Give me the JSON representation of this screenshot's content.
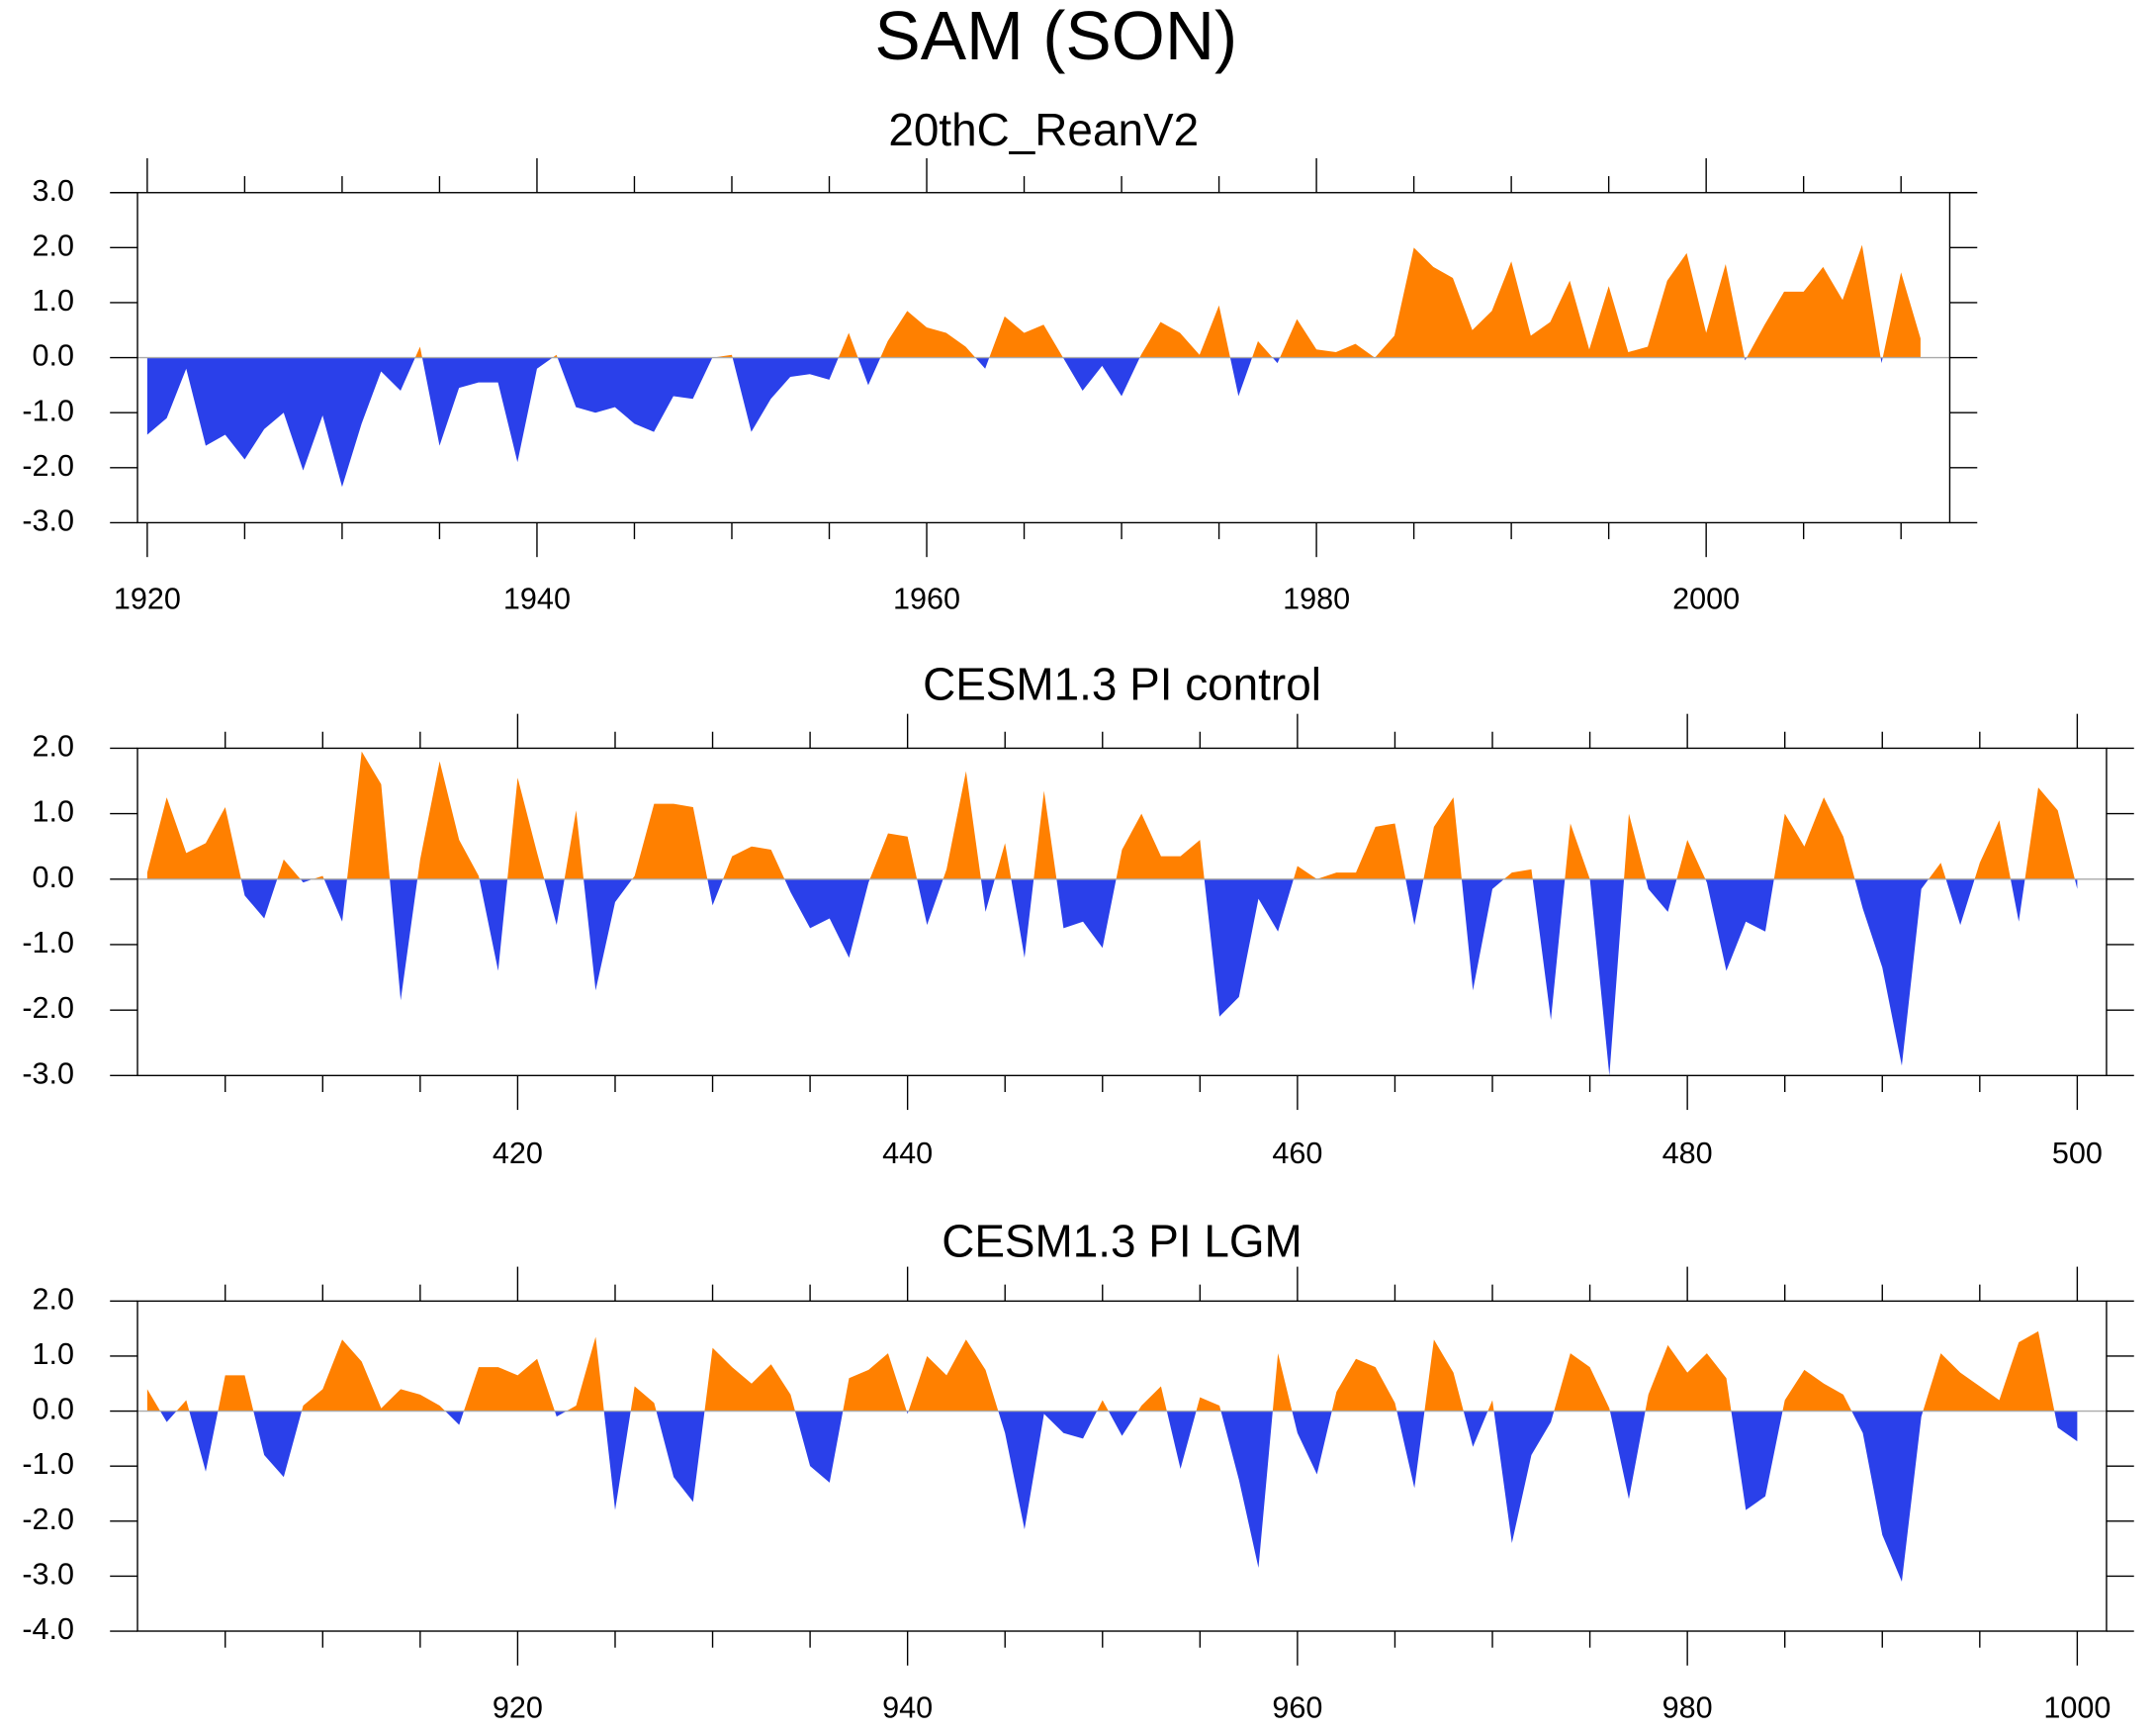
{
  "title": "SAM (SON)",
  "chart_data": [
    {
      "type": "area",
      "title": "20thC_ReanV2",
      "positive_color": "#ff8000",
      "negative_color": "#2a40ea",
      "xlim": [
        1919.5,
        2012.5
      ],
      "xticks": [
        1920,
        1940,
        1960,
        1980,
        2000
      ],
      "xminorticks": [
        1925,
        1930,
        1935,
        1945,
        1950,
        1955,
        1965,
        1970,
        1975,
        1985,
        1990,
        1995,
        2005,
        2010
      ],
      "ylim": [
        -3,
        3
      ],
      "yticks": [
        {
          "value": -3,
          "label": "-3.0"
        },
        {
          "value": -2,
          "label": "-2.0"
        },
        {
          "value": -1,
          "label": "-1.0"
        },
        {
          "value": 0,
          "label": "0.0"
        },
        {
          "value": 1,
          "label": "1.0"
        },
        {
          "value": 2,
          "label": "2.0"
        },
        {
          "value": 3,
          "label": "3.0"
        }
      ],
      "x": [
        1920,
        1921,
        1922,
        1923,
        1924,
        1925,
        1926,
        1927,
        1928,
        1929,
        1930,
        1931,
        1932,
        1933,
        1934,
        1935,
        1936,
        1937,
        1938,
        1939,
        1940,
        1941,
        1942,
        1943,
        1944,
        1945,
        1946,
        1947,
        1948,
        1949,
        1950,
        1951,
        1952,
        1953,
        1954,
        1955,
        1956,
        1957,
        1958,
        1959,
        1960,
        1961,
        1962,
        1963,
        1964,
        1965,
        1966,
        1967,
        1968,
        1969,
        1970,
        1971,
        1972,
        1973,
        1974,
        1975,
        1976,
        1977,
        1978,
        1979,
        1980,
        1981,
        1982,
        1983,
        1984,
        1985,
        1986,
        1987,
        1988,
        1989,
        1990,
        1991,
        1992,
        1993,
        1994,
        1995,
        1996,
        1997,
        1998,
        1999,
        2000,
        2001,
        2002,
        2003,
        2004,
        2005,
        2006,
        2007,
        2008,
        2009,
        2010,
        2011
      ],
      "values": [
        -1.4,
        -1.1,
        -0.2,
        -1.6,
        -1.4,
        -1.85,
        -1.3,
        -1.0,
        -2.05,
        -1.05,
        -2.35,
        -1.2,
        -0.25,
        -0.6,
        0.2,
        -1.6,
        -0.55,
        -0.45,
        -0.45,
        -1.9,
        -0.2,
        0.05,
        -0.9,
        -1.0,
        -0.9,
        -1.2,
        -1.35,
        -0.7,
        -0.75,
        0.0,
        0.05,
        -1.35,
        -0.75,
        -0.35,
        -0.3,
        -0.4,
        0.45,
        -0.5,
        0.3,
        0.85,
        0.55,
        0.45,
        0.2,
        -0.2,
        0.75,
        0.45,
        0.6,
        0.0,
        -0.6,
        -0.15,
        -0.7,
        0.05,
        0.65,
        0.45,
        0.05,
        0.95,
        -0.7,
        0.3,
        -0.1,
        0.7,
        0.15,
        0.1,
        0.25,
        0.0,
        0.4,
        2.0,
        1.65,
        1.45,
        0.5,
        0.85,
        1.75,
        0.4,
        0.65,
        1.4,
        0.15,
        1.3,
        0.1,
        0.2,
        1.4,
        1.9,
        0.45,
        1.7,
        -0.05,
        0.6,
        1.2,
        1.2,
        1.65,
        1.05,
        2.05,
        -0.1,
        1.55,
        0.35
      ]
    },
    {
      "type": "area",
      "title": "CESM1.3 PI control",
      "positive_color": "#ff8000",
      "negative_color": "#2a40ea",
      "xlim": [
        400.5,
        501.5
      ],
      "xticks": [
        420,
        440,
        460,
        480,
        500
      ],
      "xminorticks": [
        405,
        410,
        415,
        425,
        430,
        435,
        445,
        450,
        455,
        465,
        470,
        475,
        485,
        490,
        495
      ],
      "ylim": [
        -3,
        2
      ],
      "yticks": [
        {
          "value": -3,
          "label": "-3.0"
        },
        {
          "value": -2,
          "label": "-2.0"
        },
        {
          "value": -1,
          "label": "-1.0"
        },
        {
          "value": 0,
          "label": "0.0"
        },
        {
          "value": 1,
          "label": "1.0"
        },
        {
          "value": 2,
          "label": "2.0"
        }
      ],
      "x": [
        401,
        402,
        403,
        404,
        405,
        406,
        407,
        408,
        409,
        410,
        411,
        412,
        413,
        414,
        415,
        416,
        417,
        418,
        419,
        420,
        421,
        422,
        423,
        424,
        425,
        426,
        427,
        428,
        429,
        430,
        431,
        432,
        433,
        434,
        435,
        436,
        437,
        438,
        439,
        440,
        441,
        442,
        443,
        444,
        445,
        446,
        447,
        448,
        449,
        450,
        451,
        452,
        453,
        454,
        455,
        456,
        457,
        458,
        459,
        460,
        461,
        462,
        463,
        464,
        465,
        466,
        467,
        468,
        469,
        470,
        471,
        472,
        473,
        474,
        475,
        476,
        477,
        478,
        479,
        480,
        481,
        482,
        483,
        484,
        485,
        486,
        487,
        488,
        489,
        490,
        491,
        492,
        493,
        494,
        495,
        496,
        497,
        498,
        499,
        500
      ],
      "values": [
        0.1,
        1.25,
        0.4,
        0.55,
        1.1,
        -0.25,
        -0.6,
        0.3,
        -0.05,
        0.05,
        -0.65,
        1.95,
        1.45,
        -1.85,
        0.3,
        1.8,
        0.6,
        0.05,
        -1.4,
        1.55,
        0.4,
        -0.7,
        1.05,
        -1.7,
        -0.35,
        0.05,
        1.15,
        1.15,
        1.1,
        -0.4,
        0.35,
        0.5,
        0.45,
        -0.2,
        -0.75,
        -0.6,
        -1.2,
        -0.05,
        0.7,
        0.65,
        -0.7,
        0.15,
        1.65,
        -0.5,
        0.55,
        -1.2,
        1.35,
        -0.75,
        -0.65,
        -1.05,
        0.45,
        1.0,
        0.35,
        0.35,
        0.6,
        -2.1,
        -1.8,
        -0.3,
        -0.8,
        0.2,
        0.0,
        0.1,
        0.1,
        0.8,
        0.85,
        -0.7,
        0.8,
        1.25,
        -1.7,
        -0.15,
        0.1,
        0.15,
        -2.15,
        0.85,
        0.0,
        -3.0,
        1.0,
        -0.15,
        -0.5,
        0.6,
        -0.05,
        -1.4,
        -0.65,
        -0.8,
        1.0,
        0.5,
        1.25,
        0.65,
        -0.45,
        -1.35,
        -2.85,
        -0.15,
        0.25,
        -0.7,
        0.25,
        0.9,
        -0.65,
        1.4,
        1.05,
        -0.15
      ]
    },
    {
      "type": "area",
      "title": "CESM1.3 PI LGM",
      "positive_color": "#ff8000",
      "negative_color": "#2a40ea",
      "xlim": [
        900.5,
        1001.5
      ],
      "xticks": [
        920,
        940,
        960,
        980,
        1000
      ],
      "xminorticks": [
        905,
        910,
        915,
        925,
        930,
        935,
        945,
        950,
        955,
        965,
        970,
        975,
        985,
        990,
        995
      ],
      "ylim": [
        -4,
        2
      ],
      "yticks": [
        {
          "value": -4,
          "label": "-4.0"
        },
        {
          "value": -3,
          "label": "-3.0"
        },
        {
          "value": -2,
          "label": "-2.0"
        },
        {
          "value": -1,
          "label": "-1.0"
        },
        {
          "value": 0,
          "label": "0.0"
        },
        {
          "value": 1,
          "label": "1.0"
        },
        {
          "value": 2,
          "label": "2.0"
        }
      ],
      "x": [
        901,
        902,
        903,
        904,
        905,
        906,
        907,
        908,
        909,
        910,
        911,
        912,
        913,
        914,
        915,
        916,
        917,
        918,
        919,
        920,
        921,
        922,
        923,
        924,
        925,
        926,
        927,
        928,
        929,
        930,
        931,
        932,
        933,
        934,
        935,
        936,
        937,
        938,
        939,
        940,
        941,
        942,
        943,
        944,
        945,
        946,
        947,
        948,
        949,
        950,
        951,
        952,
        953,
        954,
        955,
        956,
        957,
        958,
        959,
        960,
        961,
        962,
        963,
        964,
        965,
        966,
        967,
        968,
        969,
        970,
        971,
        972,
        973,
        974,
        975,
        976,
        977,
        978,
        979,
        980,
        981,
        982,
        983,
        984,
        985,
        986,
        987,
        988,
        989,
        990,
        991,
        992,
        993,
        994,
        995,
        996,
        997,
        998,
        999,
        1000
      ],
      "values": [
        0.4,
        -0.2,
        0.2,
        -1.1,
        0.65,
        0.65,
        -0.8,
        -1.2,
        0.1,
        0.4,
        1.3,
        0.9,
        0.05,
        0.4,
        0.3,
        0.1,
        -0.25,
        0.8,
        0.8,
        0.65,
        0.95,
        -0.1,
        0.1,
        1.35,
        -1.8,
        0.45,
        0.15,
        -1.2,
        -1.65,
        1.15,
        0.8,
        0.5,
        0.85,
        0.3,
        -1.0,
        -1.3,
        0.6,
        0.75,
        1.05,
        -0.05,
        1.0,
        0.65,
        1.3,
        0.75,
        -0.4,
        -2.15,
        -0.05,
        -0.4,
        -0.5,
        0.2,
        -0.45,
        0.1,
        0.45,
        -1.05,
        0.25,
        0.1,
        -1.25,
        -2.85,
        1.05,
        -0.4,
        -1.15,
        0.35,
        0.95,
        0.8,
        0.15,
        -1.4,
        1.3,
        0.7,
        -0.65,
        0.2,
        -2.4,
        -0.8,
        -0.2,
        1.05,
        0.8,
        0.05,
        -1.6,
        0.3,
        1.2,
        0.7,
        1.05,
        0.6,
        -1.8,
        -1.55,
        0.2,
        0.75,
        0.5,
        0.3,
        -0.4,
        -2.25,
        -3.1,
        -0.1,
        1.05,
        0.7,
        0.45,
        0.2,
        1.25,
        1.45,
        -0.3,
        -0.55
      ]
    }
  ]
}
